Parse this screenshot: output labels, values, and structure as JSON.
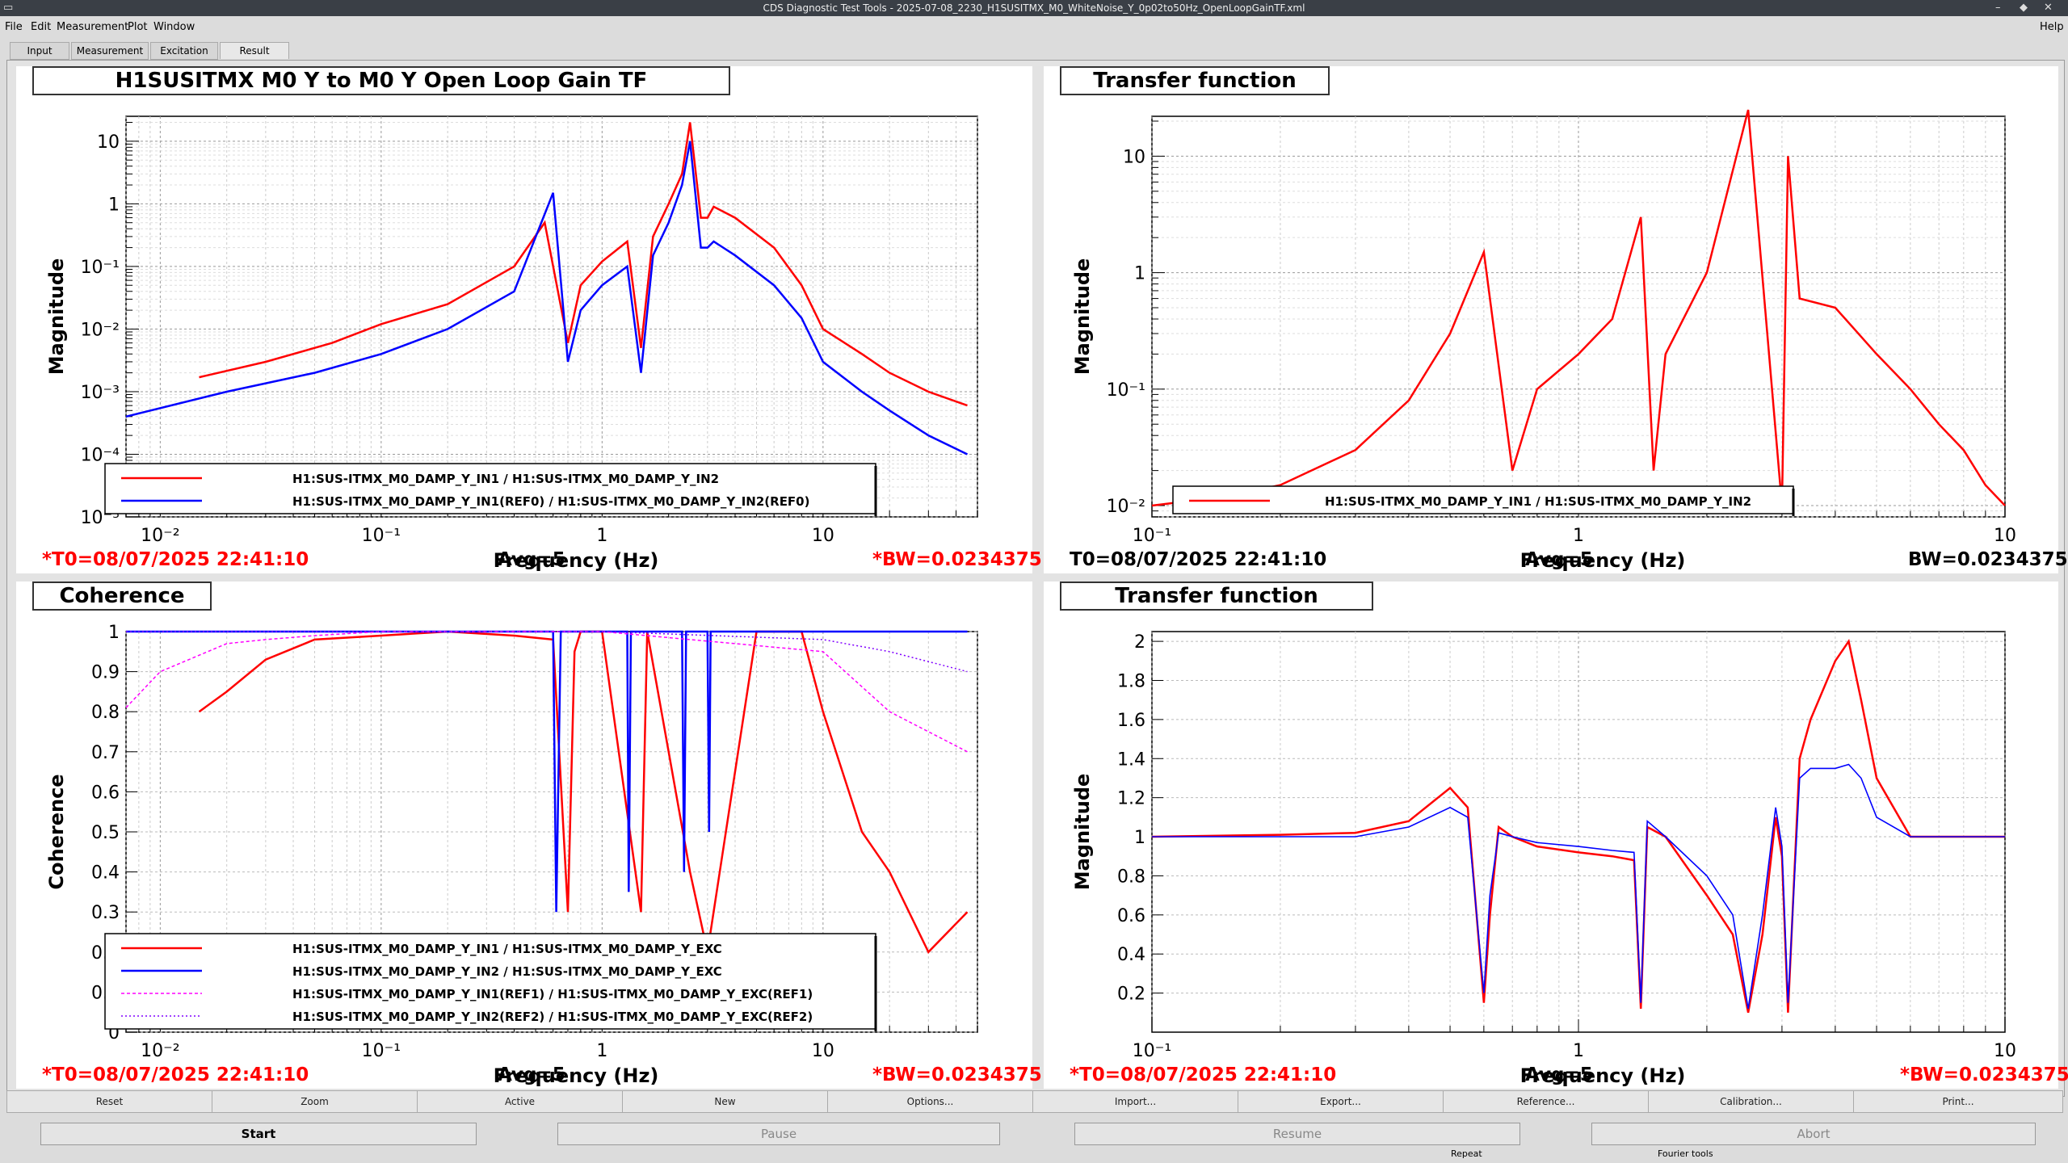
{
  "window": {
    "title": "CDS Diagnostic Test Tools - 2025-07-08_2230_H1SUSITMX_M0_WhiteNoise_Y_0p02to50Hz_OpenLoopGainTF.xml"
  },
  "menu": {
    "file": "File",
    "edit": "Edit",
    "measurement": "Measurement",
    "plot": "Plot",
    "window": "Window",
    "help": "Help"
  },
  "tabs": {
    "input": "Input",
    "measurement": "Measurement",
    "excitation": "Excitation",
    "result": "Result"
  },
  "panels": [
    {
      "title": "H1SUSITMX M0 Y to M0 Y Open Loop Gain TF",
      "xlabel": "Frequency (Hz)",
      "ylabel": "Magnitude",
      "t0": "*T0=08/07/2025 22:41:10",
      "avg": "Avg=5",
      "bw": "*BW=0.0234375",
      "legend": [
        "H1:SUS-ITMX_M0_DAMP_Y_IN1 / H1:SUS-ITMX_M0_DAMP_Y_IN2",
        "H1:SUS-ITMX_M0_DAMP_Y_IN1(REF0) / H1:SUS-ITMX_M0_DAMP_Y_IN2(REF0)"
      ]
    },
    {
      "title": "Transfer function",
      "xlabel": "Frequency (Hz)",
      "ylabel": "Magnitude",
      "t0": "T0=08/07/2025 22:41:10",
      "avg": "Avg=5",
      "bw": "BW=0.0234375",
      "legend": [
        "H1:SUS-ITMX_M0_DAMP_Y_IN1 / H1:SUS-ITMX_M0_DAMP_Y_IN2"
      ]
    },
    {
      "title": "Coherence",
      "xlabel": "Frequency (Hz)",
      "ylabel": "Coherence",
      "t0": "*T0=08/07/2025 22:41:10",
      "avg": "Avg=5",
      "bw": "*BW=0.0234375",
      "legend": [
        "H1:SUS-ITMX_M0_DAMP_Y_IN1 / H1:SUS-ITMX_M0_DAMP_Y_EXC",
        "H1:SUS-ITMX_M0_DAMP_Y_IN2 / H1:SUS-ITMX_M0_DAMP_Y_EXC",
        "H1:SUS-ITMX_M0_DAMP_Y_IN1(REF1) / H1:SUS-ITMX_M0_DAMP_Y_EXC(REF1)",
        "H1:SUS-ITMX_M0_DAMP_Y_IN2(REF2) / H1:SUS-ITMX_M0_DAMP_Y_EXC(REF2)"
      ]
    },
    {
      "title": "Transfer function",
      "xlabel": "Frequency (Hz)",
      "ylabel": "Magnitude",
      "t0": "*T0=08/07/2025 22:41:10",
      "avg": "Avg=5",
      "bw": "*BW=0.0234375",
      "legend": []
    }
  ],
  "buttons": [
    "Reset",
    "Zoom",
    "Active",
    "New",
    "Options...",
    "Import...",
    "Export...",
    "Reference...",
    "Calibration...",
    "Print..."
  ],
  "controls": {
    "start": "Start",
    "pause": "Pause",
    "resume": "Resume",
    "abort": "Abort"
  },
  "status": {
    "repeat": "Repeat",
    "fourier": "Fourier tools"
  },
  "colors": {
    "red": "#ff0000",
    "blue": "#0000ff",
    "magenta": "#ff00ff",
    "purple": "#8000ff"
  },
  "chart_data": [
    {
      "type": "line",
      "xscale": "log",
      "yscale": "log",
      "xlim": [
        0.007,
        50
      ],
      "ylim": [
        1e-05,
        25
      ],
      "xticks": [
        "10⁻²",
        "10⁻¹",
        "1",
        "10"
      ],
      "yticks": [
        "10",
        "1",
        "10⁻¹",
        "10⁻²",
        "10⁻³",
        "10⁻⁴",
        "10⁻⁵"
      ],
      "series": [
        {
          "x": [
            0.015,
            0.03,
            0.06,
            0.1,
            0.2,
            0.4,
            0.55,
            0.7,
            0.8,
            1.0,
            1.3,
            1.5,
            1.7,
            2.0,
            2.3,
            2.5,
            2.8,
            3.0,
            3.2,
            4.0,
            6.0,
            8.0,
            10,
            15,
            20,
            30,
            45
          ],
          "y": [
            0.0017,
            0.003,
            0.006,
            0.012,
            0.025,
            0.1,
            0.5,
            0.006,
            0.05,
            0.12,
            0.25,
            0.005,
            0.3,
            1.0,
            3.0,
            20,
            0.6,
            0.6,
            0.9,
            0.6,
            0.2,
            0.05,
            0.01,
            0.004,
            0.002,
            0.001,
            0.0006
          ]
        },
        {
          "x": [
            0.007,
            0.02,
            0.05,
            0.1,
            0.2,
            0.4,
            0.6,
            0.7,
            0.8,
            1.0,
            1.3,
            1.5,
            1.7,
            2.0,
            2.3,
            2.5,
            2.8,
            3.0,
            3.2,
            4.0,
            6.0,
            8.0,
            10,
            15,
            20,
            30,
            45
          ],
          "y": [
            0.0004,
            0.001,
            0.002,
            0.004,
            0.01,
            0.04,
            1.5,
            0.003,
            0.02,
            0.05,
            0.1,
            0.002,
            0.15,
            0.5,
            2.0,
            10,
            0.2,
            0.2,
            0.25,
            0.15,
            0.05,
            0.015,
            0.003,
            0.001,
            0.0005,
            0.0002,
            0.0001
          ]
        }
      ]
    },
    {
      "type": "line",
      "xscale": "log",
      "yscale": "log",
      "xlim": [
        0.1,
        10
      ],
      "ylim": [
        0.008,
        22
      ],
      "xticks": [
        "10⁻¹",
        "1",
        "10"
      ],
      "yticks": [
        "10",
        "1",
        "10⁻¹",
        "10⁻²"
      ],
      "series": [
        {
          "x": [
            0.1,
            0.15,
            0.2,
            0.3,
            0.4,
            0.5,
            0.6,
            0.7,
            0.8,
            1.0,
            1.2,
            1.4,
            1.5,
            1.6,
            2.0,
            2.5,
            3.0,
            3.1,
            3.3,
            4.0,
            5.0,
            6.0,
            7.0,
            8.0,
            9.0,
            10
          ],
          "y": [
            0.01,
            0.012,
            0.015,
            0.03,
            0.08,
            0.3,
            1.5,
            0.02,
            0.1,
            0.2,
            0.4,
            3.0,
            0.02,
            0.2,
            1.0,
            25,
            0.01,
            10,
            0.6,
            0.5,
            0.2,
            0.1,
            0.05,
            0.03,
            0.015,
            0.01
          ]
        }
      ]
    },
    {
      "type": "line",
      "xscale": "log",
      "xlim": [
        0.007,
        50
      ],
      "ylim": [
        0,
        1
      ],
      "xticks": [
        "10⁻²",
        "10⁻¹",
        "1",
        "10"
      ],
      "yticks": [
        "1",
        "0.9",
        "0.8",
        "0.7",
        "0.6",
        "0.5",
        "0.4",
        "0.3",
        "0.2",
        "0.1",
        "0"
      ],
      "series": [
        {
          "x": [
            0.015,
            0.02,
            0.03,
            0.05,
            0.1,
            0.2,
            0.4,
            0.6,
            0.7,
            0.75,
            0.8,
            1.0,
            1.5,
            1.6,
            2.5,
            3.0,
            5,
            8,
            10,
            15,
            20,
            30,
            45
          ],
          "y": [
            0.8,
            0.85,
            0.93,
            0.98,
            0.99,
            1.0,
            0.99,
            0.98,
            0.3,
            0.95,
            1.0,
            1.0,
            0.3,
            1.0,
            0.4,
            0.2,
            1.0,
            1.0,
            0.8,
            0.5,
            0.4,
            0.2,
            0.3
          ]
        },
        {
          "x": [
            0.007,
            0.05,
            0.1,
            0.5,
            0.6,
            0.62,
            0.65,
            1.0,
            1.3,
            1.32,
            1.35,
            2.3,
            2.35,
            2.4,
            3.0,
            3.05,
            3.1,
            10,
            45
          ],
          "y": [
            1.0,
            1.0,
            1.0,
            1.0,
            1.0,
            0.3,
            1.0,
            1.0,
            1.0,
            0.35,
            1.0,
            1.0,
            0.4,
            1.0,
            1.0,
            0.5,
            1.0,
            1.0,
            1.0
          ]
        },
        {
          "x": [
            0.007,
            0.01,
            0.02,
            0.03,
            0.05,
            0.1,
            1.0,
            10,
            20,
            45
          ],
          "y": [
            0.81,
            0.9,
            0.97,
            0.98,
            0.99,
            1.0,
            1.0,
            0.95,
            0.8,
            0.7
          ]
        },
        {
          "x": [
            0.007,
            0.05,
            1.0,
            10,
            20,
            45
          ],
          "y": [
            1.0,
            1.0,
            1.0,
            0.98,
            0.95,
            0.9
          ]
        }
      ]
    },
    {
      "type": "line",
      "xscale": "log",
      "xlim": [
        0.1,
        10
      ],
      "ylim": [
        0,
        2.05
      ],
      "xticks": [
        "10⁻¹",
        "1",
        "10"
      ],
      "yticks": [
        "2",
        "1.8",
        "1.6",
        "1.4",
        "1.2",
        "1",
        "0.8",
        "0.6",
        "0.4",
        "0.2"
      ],
      "series": [
        {
          "x": [
            0.1,
            0.2,
            0.3,
            0.4,
            0.5,
            0.55,
            0.6,
            0.62,
            0.65,
            0.7,
            0.8,
            1.0,
            1.2,
            1.35,
            1.4,
            1.45,
            1.6,
            2.0,
            2.3,
            2.5,
            2.7,
            2.9,
            3.0,
            3.1,
            3.3,
            3.5,
            4.0,
            4.3,
            4.6,
            5.0,
            6.0,
            8.0,
            10
          ],
          "y": [
            1.0,
            1.01,
            1.02,
            1.08,
            1.25,
            1.15,
            0.15,
            0.6,
            1.05,
            1.0,
            0.95,
            0.92,
            0.9,
            0.88,
            0.12,
            1.05,
            1.0,
            0.7,
            0.5,
            0.1,
            0.5,
            1.1,
            0.9,
            0.1,
            1.4,
            1.6,
            1.9,
            2.0,
            1.7,
            1.3,
            1.0,
            1.0,
            1.0
          ]
        },
        {
          "x": [
            0.1,
            0.2,
            0.3,
            0.4,
            0.5,
            0.55,
            0.6,
            0.62,
            0.65,
            0.7,
            0.8,
            1.0,
            1.2,
            1.35,
            1.4,
            1.45,
            1.6,
            2.0,
            2.3,
            2.5,
            2.7,
            2.9,
            3.0,
            3.1,
            3.3,
            3.5,
            4.0,
            4.3,
            4.6,
            5.0,
            6.0,
            8.0,
            10
          ],
          "y": [
            1.0,
            1.0,
            1.0,
            1.05,
            1.15,
            1.1,
            0.2,
            0.7,
            1.02,
            1.0,
            0.97,
            0.95,
            0.93,
            0.92,
            0.15,
            1.08,
            1.0,
            0.8,
            0.6,
            0.12,
            0.6,
            1.15,
            0.95,
            0.15,
            1.3,
            1.35,
            1.35,
            1.37,
            1.3,
            1.1,
            1.0,
            1.0,
            1.0
          ]
        }
      ]
    }
  ]
}
